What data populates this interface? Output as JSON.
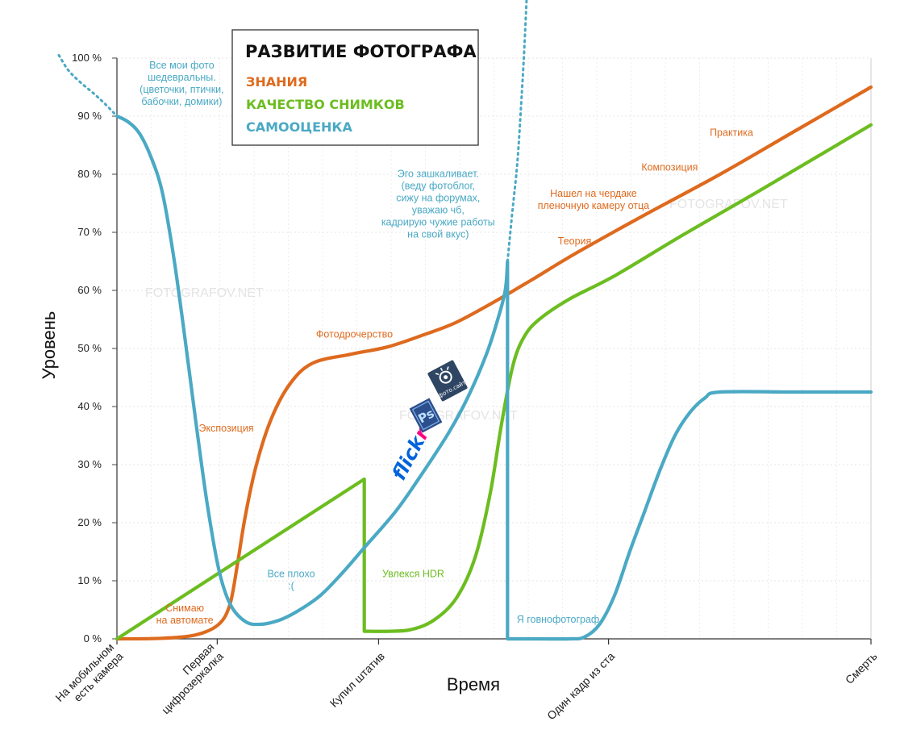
{
  "chart_data": {
    "type": "line",
    "title": "РАЗВИТИЕ ФОТОГРАФА",
    "xlabel": "Время",
    "ylabel": "Уровень",
    "ylim": [
      0,
      100
    ],
    "yticks": [
      "0 %",
      "10 %",
      "20 %",
      "30 %",
      "40 %",
      "50 %",
      "60 %",
      "70 %",
      "80 %",
      "90 %",
      "100 %"
    ],
    "grid": true,
    "x_categories": [
      {
        "label": [
          "На мобильном",
          "есть камера"
        ],
        "x": 0
      },
      {
        "label": [
          "Первая",
          "цифрозеркалка"
        ],
        "x": 13.3
      },
      {
        "label": [
          "Купил штатив"
        ],
        "x": 34.7
      },
      {
        "label": [
          "Один кадр из ста"
        ],
        "x": 65.2
      },
      {
        "label": [
          "Смерть"
        ],
        "x": 100
      }
    ],
    "xlim": [
      0,
      100
    ],
    "legend": {
      "placement": "top-center",
      "entries": [
        {
          "name": "ЗНАНИЯ",
          "color": "#de6a1e"
        },
        {
          "name": "КАЧЕСТВО СНИМКОВ",
          "color": "#6cbd20"
        },
        {
          "name": "САМООЦЕНКА",
          "color": "#4aa9c4"
        }
      ]
    },
    "series": [
      {
        "name": "ЗНАНИЯ",
        "color": "#de6a1e",
        "points": [
          [
            0,
            0
          ],
          [
            6,
            0.1
          ],
          [
            10.5,
            0.7
          ],
          [
            13.5,
            2.5
          ],
          [
            15,
            6
          ],
          [
            16,
            13
          ],
          [
            17,
            21
          ],
          [
            18.5,
            30
          ],
          [
            20.5,
            38
          ],
          [
            23,
            44
          ],
          [
            26,
            47.5
          ],
          [
            31,
            49
          ],
          [
            36,
            50.3
          ],
          [
            41,
            52.5
          ],
          [
            45,
            54.5
          ],
          [
            50,
            58
          ],
          [
            55,
            61.8
          ],
          [
            61,
            66.5
          ],
          [
            70,
            73
          ],
          [
            80,
            80
          ],
          [
            90,
            87.5
          ],
          [
            100,
            95
          ]
        ]
      },
      {
        "name": "КАЧЕСТВО СНИМКОВ",
        "color": "#6cbd20",
        "points": [
          [
            0,
            0
          ],
          [
            32.8,
            27.5
          ],
          [
            32.8,
            1.3
          ],
          [
            36,
            1.3
          ],
          [
            39,
            1.6
          ],
          [
            42,
            3.2
          ],
          [
            45,
            7
          ],
          [
            47.5,
            14
          ],
          [
            49.5,
            25
          ],
          [
            51,
            37
          ],
          [
            52.5,
            47
          ],
          [
            54,
            52
          ],
          [
            56,
            55
          ],
          [
            60,
            58.5
          ],
          [
            66,
            62.5
          ],
          [
            75,
            69.5
          ],
          [
            85,
            77
          ],
          [
            100,
            88.5
          ]
        ]
      },
      {
        "name": "САМООЦЕНКА",
        "color": "#4aa9c4",
        "points": [
          [
            0,
            90
          ],
          [
            1.5,
            89
          ],
          [
            3,
            87
          ],
          [
            4.5,
            83
          ],
          [
            6,
            77
          ],
          [
            7.5,
            66
          ],
          [
            9,
            52
          ],
          [
            10.5,
            37
          ],
          [
            12,
            23
          ],
          [
            13.5,
            12
          ],
          [
            15,
            6
          ],
          [
            17,
            3
          ],
          [
            19,
            2.5
          ],
          [
            21.5,
            3.2
          ],
          [
            24,
            4.8
          ],
          [
            27,
            7.5
          ],
          [
            30,
            11.5
          ],
          [
            33,
            16
          ],
          [
            37,
            22
          ],
          [
            40.5,
            28.5
          ],
          [
            44,
            35.5
          ],
          [
            46.5,
            41.5
          ],
          [
            49,
            49
          ],
          [
            50.5,
            55
          ],
          [
            51.5,
            60
          ],
          [
            51.8,
            65
          ],
          [
            51.8,
            0
          ],
          [
            56,
            0
          ],
          [
            60,
            0
          ],
          [
            62,
            0.3
          ],
          [
            64,
            2.5
          ],
          [
            66,
            7.5
          ],
          [
            68,
            15
          ],
          [
            70,
            22
          ],
          [
            72,
            29
          ],
          [
            74,
            35
          ],
          [
            76,
            39
          ],
          [
            78,
            41.5
          ],
          [
            80,
            42.5
          ],
          [
            90,
            42.5
          ],
          [
            100,
            42.5
          ]
        ]
      }
    ],
    "dotted_extensions": [
      {
        "series": "САМООЦЕНКА",
        "points": [
          [
            -7.7,
            100.5
          ],
          [
            -6.5,
            98
          ],
          [
            -5,
            96
          ],
          [
            -3,
            93.8
          ],
          [
            -1.5,
            92
          ],
          [
            0,
            90
          ]
        ]
      },
      {
        "series": "САМООЦЕНКА",
        "points": [
          [
            51.8,
            65
          ],
          [
            52.4,
            73
          ],
          [
            53.1,
            82
          ],
          [
            53.6,
            92
          ],
          [
            54,
            101
          ],
          [
            54.4,
            112
          ]
        ]
      }
    ],
    "annotations": [
      {
        "text": [
          "Все мои фото",
          "шедевральны.",
          "(цветочки, птички,",
          "бабочки, домики)"
        ],
        "x": 8.6,
        "y": 98.2,
        "color": "#4aa9c4"
      },
      {
        "text": [
          "Экспозиция"
        ],
        "x": 14.5,
        "y": 35.7,
        "color": "#de6a1e"
      },
      {
        "text": [
          "Снимаю",
          "на автомате"
        ],
        "x": 9,
        "y": 4.7,
        "color": "#de6a1e"
      },
      {
        "text": [
          "Все плохо",
          ":("
        ],
        "x": 23.1,
        "y": 10.6,
        "color": "#4aa9c4"
      },
      {
        "text": [
          "Увлекся HDR"
        ],
        "x": 39.3,
        "y": 10.6,
        "color": "#6cbd20"
      },
      {
        "text": [
          "Фотодрочерство"
        ],
        "x": 31.5,
        "y": 51.9,
        "color": "#de6a1e"
      },
      {
        "text": [
          "Эго зашкаливает.",
          "(веду фотоблог,",
          "сижу на форумах,",
          "уважаю чб,",
          "кадрирую чужие работы",
          "на свой вкус)"
        ],
        "x": 42.6,
        "y": 79.5,
        "color": "#4aa9c4"
      },
      {
        "text": [
          "Я говнофотограф"
        ],
        "x": 58.5,
        "y": 2.8,
        "color": "#4aa9c4"
      },
      {
        "text": [
          "Теория"
        ],
        "x": 60.7,
        "y": 67.9,
        "color": "#de6a1e"
      },
      {
        "text": [
          "Нашел на чердаке",
          "пленочную камеру отца"
        ],
        "x": 63.2,
        "y": 76.1,
        "color": "#de6a1e"
      },
      {
        "text": [
          "Композиция"
        ],
        "x": 73.3,
        "y": 80.6,
        "color": "#de6a1e"
      },
      {
        "text": [
          "Практика"
        ],
        "x": 81.5,
        "y": 86.6,
        "color": "#de6a1e"
      }
    ],
    "watermarks": [
      "FOTOGRAFOV.NET",
      "FOTOGRAFOV.NET",
      "FOTOGRAFOV.NET"
    ],
    "logos": [
      "flickr",
      "Ps",
      "фото.сайт"
    ]
  }
}
